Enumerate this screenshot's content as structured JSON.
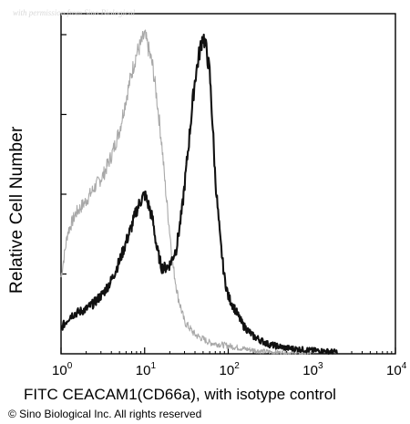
{
  "watermark": "with permission from Sino Biological",
  "copyright": "© Sino Biological Inc. All rights reserved",
  "chart_data": {
    "type": "line",
    "title": "",
    "xlabel": "FITC CEACAM1(CD66a), with isotype control",
    "ylabel": "Relative Cell Number",
    "x_scale": "log",
    "xlim": [
      1,
      10000
    ],
    "ylim": [
      0,
      100
    ],
    "grid": false,
    "x_ticks": [
      {
        "base": "10",
        "exp": "0",
        "value": 1
      },
      {
        "base": "10",
        "exp": "1",
        "value": 10
      },
      {
        "base": "10",
        "exp": "2",
        "value": 100
      },
      {
        "base": "10",
        "exp": "3",
        "value": 1000
      },
      {
        "base": "10",
        "exp": "4",
        "value": 10000
      }
    ],
    "series": [
      {
        "role": "isotype-control",
        "color": "#a8a8a8",
        "x": [
          1.0,
          1.2,
          1.5,
          2.0,
          2.5,
          3.2,
          4.0,
          5.0,
          6.0,
          7.0,
          8.0,
          9.0,
          10.0,
          11.0,
          12.5,
          14.0,
          16.0,
          18.0,
          20.0,
          22.0,
          25.0,
          30.0,
          40.0,
          60.0,
          100.0,
          160.0,
          250.0,
          400.0,
          700.0,
          1000.0
        ],
        "y": [
          24,
          38,
          44,
          48,
          52,
          56,
          62,
          70,
          80,
          88,
          94,
          97,
          100,
          96,
          90,
          80,
          66,
          50,
          38,
          27,
          18,
          10,
          6,
          3.5,
          2.5,
          1.5,
          0.8,
          0.4,
          0.2,
          0.1
        ]
      },
      {
        "role": "CEACAM1 (CD66a)",
        "color": "#111111",
        "x": [
          1.0,
          1.3,
          1.6,
          2.0,
          2.5,
          3.2,
          4.0,
          5.0,
          6.0,
          7.0,
          8.0,
          9.0,
          10.0,
          11.0,
          12.5,
          14.0,
          16.0,
          18.0,
          20.0,
          24.0,
          28.0,
          32.0,
          36.0,
          40.0,
          45.0,
          50.0,
          55.0,
          60.0,
          65.0,
          70.0,
          80.0,
          90.0,
          100.0,
          120.0,
          150.0,
          200.0,
          300.0,
          500.0,
          800.0,
          1000.0,
          2000.0
        ],
        "y": [
          8,
          12,
          13,
          14,
          16,
          19,
          23,
          29,
          35,
          40,
          45,
          48,
          50,
          47,
          42,
          33,
          27,
          27,
          28,
          33,
          45,
          60,
          74,
          86,
          94,
          100,
          95,
          88,
          72,
          55,
          36,
          24,
          18,
          14,
          9,
          5.5,
          3,
          1.8,
          1.3,
          1.1,
          0.6
        ]
      }
    ]
  }
}
